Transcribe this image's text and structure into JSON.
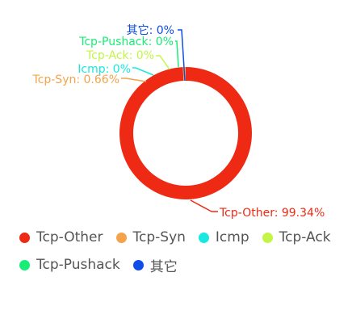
{
  "chart_data": {
    "type": "pie",
    "subtype": "donut",
    "title": "",
    "series": [
      {
        "name": "Tcp-Other",
        "value": 99.34,
        "label": "Tcp-Other: 99.34%",
        "color": "#ee2a15"
      },
      {
        "name": "Tcp-Syn",
        "value": 0.66,
        "label": "Tcp-Syn: 0.66%",
        "color": "#f5a34b"
      },
      {
        "name": "Icmp",
        "value": 0,
        "label": "Icmp: 0%",
        "color": "#18e8e0"
      },
      {
        "name": "Tcp-Ack",
        "value": 0,
        "label": "Tcp-Ack: 0%",
        "color": "#c3f547"
      },
      {
        "name": "Tcp-Pushack",
        "value": 0,
        "label": "Tcp-Pushack: 0%",
        "color": "#18ee77"
      },
      {
        "name": "其它",
        "value": 0,
        "label": "其它: 0%",
        "color": "#0e4de8"
      }
    ],
    "legend": {
      "placement": "bottom-left",
      "rows": [
        [
          "Tcp-Other",
          "Tcp-Syn",
          "Icmp",
          "Tcp-Ack"
        ],
        [
          "Tcp-Pushack",
          "其它"
        ]
      ]
    }
  }
}
